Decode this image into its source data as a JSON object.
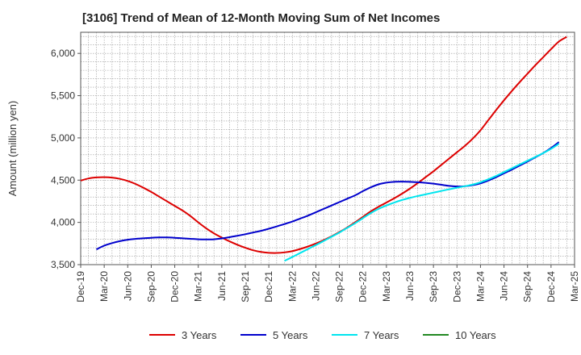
{
  "chart_data": {
    "type": "line",
    "title": "[3106]  Trend of Mean of 12-Month Moving Sum of Net Incomes",
    "xlabel": "",
    "ylabel": "Amount (million yen)",
    "ylim": [
      3500,
      6250
    ],
    "yticks": [
      3500,
      4000,
      4500,
      5000,
      5500,
      6000
    ],
    "ytick_labels": [
      "3,500",
      "4,000",
      "4,500",
      "5,000",
      "5,500",
      "6,000"
    ],
    "x_start": "Dec-19",
    "x_end": "Mar-25",
    "xtick_labels": [
      "Dec-19",
      "Mar-20",
      "Jun-20",
      "Sep-20",
      "Dec-20",
      "Mar-21",
      "Jun-21",
      "Sep-21",
      "Dec-21",
      "Mar-22",
      "Jun-22",
      "Sep-22",
      "Dec-22",
      "Mar-23",
      "Jun-23",
      "Sep-23",
      "Dec-23",
      "Mar-24",
      "Jun-24",
      "Sep-24",
      "Dec-24",
      "Mar-25"
    ],
    "grid": true,
    "legend_position": "bottom",
    "series": [
      {
        "name": "3 Years",
        "color": "#dd0000",
        "points": [
          [
            "Dec-19",
            4495
          ],
          [
            "Jan-20",
            4520
          ],
          [
            "Feb-20",
            4532
          ],
          [
            "Mar-20",
            4535
          ],
          [
            "Apr-20",
            4530
          ],
          [
            "May-20",
            4515
          ],
          [
            "Jun-20",
            4490
          ],
          [
            "Jul-20",
            4455
          ],
          [
            "Aug-20",
            4410
          ],
          [
            "Sep-20",
            4360
          ],
          [
            "Oct-20",
            4305
          ],
          [
            "Nov-20",
            4250
          ],
          [
            "Dec-20",
            4195
          ],
          [
            "Jan-21",
            4140
          ],
          [
            "Feb-21",
            4075
          ],
          [
            "Mar-21",
            4000
          ],
          [
            "Apr-21",
            3930
          ],
          [
            "May-21",
            3870
          ],
          [
            "Jun-21",
            3820
          ],
          [
            "Jul-21",
            3775
          ],
          [
            "Aug-21",
            3735
          ],
          [
            "Sep-21",
            3700
          ],
          [
            "Oct-21",
            3670
          ],
          [
            "Nov-21",
            3650
          ],
          [
            "Dec-21",
            3640
          ],
          [
            "Jan-22",
            3638
          ],
          [
            "Feb-22",
            3645
          ],
          [
            "Mar-22",
            3660
          ],
          [
            "Apr-22",
            3685
          ],
          [
            "May-22",
            3715
          ],
          [
            "Jun-22",
            3750
          ],
          [
            "Jul-22",
            3790
          ],
          [
            "Aug-22",
            3835
          ],
          [
            "Sep-22",
            3885
          ],
          [
            "Oct-22",
            3940
          ],
          [
            "Nov-22",
            4000
          ],
          [
            "Dec-22",
            4065
          ],
          [
            "Jan-23",
            4130
          ],
          [
            "Feb-23",
            4185
          ],
          [
            "Mar-23",
            4235
          ],
          [
            "Apr-23",
            4285
          ],
          [
            "May-23",
            4340
          ],
          [
            "Jun-23",
            4400
          ],
          [
            "Jul-23",
            4465
          ],
          [
            "Aug-23",
            4535
          ],
          [
            "Sep-23",
            4605
          ],
          [
            "Oct-23",
            4680
          ],
          [
            "Nov-23",
            4755
          ],
          [
            "Dec-23",
            4830
          ],
          [
            "Jan-24",
            4905
          ],
          [
            "Feb-24",
            4990
          ],
          [
            "Mar-24",
            5090
          ],
          [
            "Apr-24",
            5210
          ],
          [
            "May-24",
            5330
          ],
          [
            "Jun-24",
            5445
          ],
          [
            "Jul-24",
            5555
          ],
          [
            "Aug-24",
            5660
          ],
          [
            "Sep-24",
            5760
          ],
          [
            "Oct-24",
            5860
          ],
          [
            "Nov-24",
            5955
          ],
          [
            "Dec-24",
            6050
          ],
          [
            "Jan-25",
            6140
          ],
          [
            "Feb-25",
            6195
          ]
        ]
      },
      {
        "name": "5 Years",
        "color": "#0000cc",
        "points": [
          [
            "Feb-20",
            3680
          ],
          [
            "Mar-20",
            3725
          ],
          [
            "Apr-20",
            3755
          ],
          [
            "May-20",
            3778
          ],
          [
            "Jun-20",
            3795
          ],
          [
            "Jul-20",
            3805
          ],
          [
            "Aug-20",
            3812
          ],
          [
            "Sep-20",
            3818
          ],
          [
            "Oct-20",
            3822
          ],
          [
            "Nov-20",
            3822
          ],
          [
            "Dec-20",
            3818
          ],
          [
            "Jan-21",
            3812
          ],
          [
            "Feb-21",
            3806
          ],
          [
            "Mar-21",
            3800
          ],
          [
            "Apr-21",
            3798
          ],
          [
            "May-21",
            3800
          ],
          [
            "Jun-21",
            3810
          ],
          [
            "Jul-21",
            3825
          ],
          [
            "Aug-21",
            3842
          ],
          [
            "Sep-21",
            3860
          ],
          [
            "Oct-21",
            3880
          ],
          [
            "Nov-21",
            3900
          ],
          [
            "Dec-21",
            3925
          ],
          [
            "Jan-22",
            3952
          ],
          [
            "Feb-22",
            3980
          ],
          [
            "Mar-22",
            4010
          ],
          [
            "Apr-22",
            4045
          ],
          [
            "May-22",
            4080
          ],
          [
            "Jun-22",
            4120
          ],
          [
            "Jul-22",
            4160
          ],
          [
            "Aug-22",
            4200
          ],
          [
            "Sep-22",
            4240
          ],
          [
            "Oct-22",
            4280
          ],
          [
            "Nov-22",
            4320
          ],
          [
            "Dec-22",
            4370
          ],
          [
            "Jan-23",
            4415
          ],
          [
            "Feb-23",
            4450
          ],
          [
            "Mar-23",
            4470
          ],
          [
            "Apr-23",
            4480
          ],
          [
            "May-23",
            4482
          ],
          [
            "Jun-23",
            4480
          ],
          [
            "Jul-23",
            4475
          ],
          [
            "Aug-23",
            4468
          ],
          [
            "Sep-23",
            4458
          ],
          [
            "Oct-23",
            4445
          ],
          [
            "Nov-23",
            4432
          ],
          [
            "Dec-23",
            4425
          ],
          [
            "Jan-24",
            4428
          ],
          [
            "Feb-24",
            4440
          ],
          [
            "Mar-24",
            4462
          ],
          [
            "Apr-24",
            4495
          ],
          [
            "May-24",
            4535
          ],
          [
            "Jun-24",
            4580
          ],
          [
            "Jul-24",
            4625
          ],
          [
            "Aug-24",
            4672
          ],
          [
            "Sep-24",
            4720
          ],
          [
            "Oct-24",
            4770
          ],
          [
            "Nov-24",
            4820
          ],
          [
            "Dec-24",
            4880
          ],
          [
            "Jan-25",
            4950
          ]
        ]
      },
      {
        "name": "7 Years",
        "color": "#00e5ee",
        "points": [
          [
            "Feb-22",
            3545
          ],
          [
            "Mar-22",
            3590
          ],
          [
            "Apr-22",
            3638
          ],
          [
            "May-22",
            3685
          ],
          [
            "Jun-22",
            3732
          ],
          [
            "Jul-22",
            3780
          ],
          [
            "Aug-22",
            3830
          ],
          [
            "Sep-22",
            3880
          ],
          [
            "Oct-22",
            3935
          ],
          [
            "Nov-22",
            3990
          ],
          [
            "Dec-22",
            4050
          ],
          [
            "Jan-23",
            4110
          ],
          [
            "Feb-23",
            4160
          ],
          [
            "Mar-23",
            4200
          ],
          [
            "Apr-23",
            4235
          ],
          [
            "May-23",
            4265
          ],
          [
            "Jun-23",
            4290
          ],
          [
            "Jul-23",
            4312
          ],
          [
            "Aug-23",
            4332
          ],
          [
            "Sep-23",
            4352
          ],
          [
            "Oct-23",
            4372
          ],
          [
            "Nov-23",
            4392
          ],
          [
            "Dec-23",
            4410
          ],
          [
            "Jan-24",
            4428
          ],
          [
            "Feb-24",
            4448
          ],
          [
            "Mar-24",
            4475
          ],
          [
            "Apr-24",
            4510
          ],
          [
            "May-24",
            4550
          ],
          [
            "Jun-24",
            4595
          ],
          [
            "Jul-24",
            4640
          ],
          [
            "Aug-24",
            4685
          ],
          [
            "Sep-24",
            4730
          ],
          [
            "Oct-24",
            4775
          ],
          [
            "Nov-24",
            4820
          ],
          [
            "Dec-24",
            4870
          ],
          [
            "Jan-25",
            4930
          ]
        ]
      },
      {
        "name": "10 Years",
        "color": "#228822",
        "points": []
      }
    ]
  }
}
